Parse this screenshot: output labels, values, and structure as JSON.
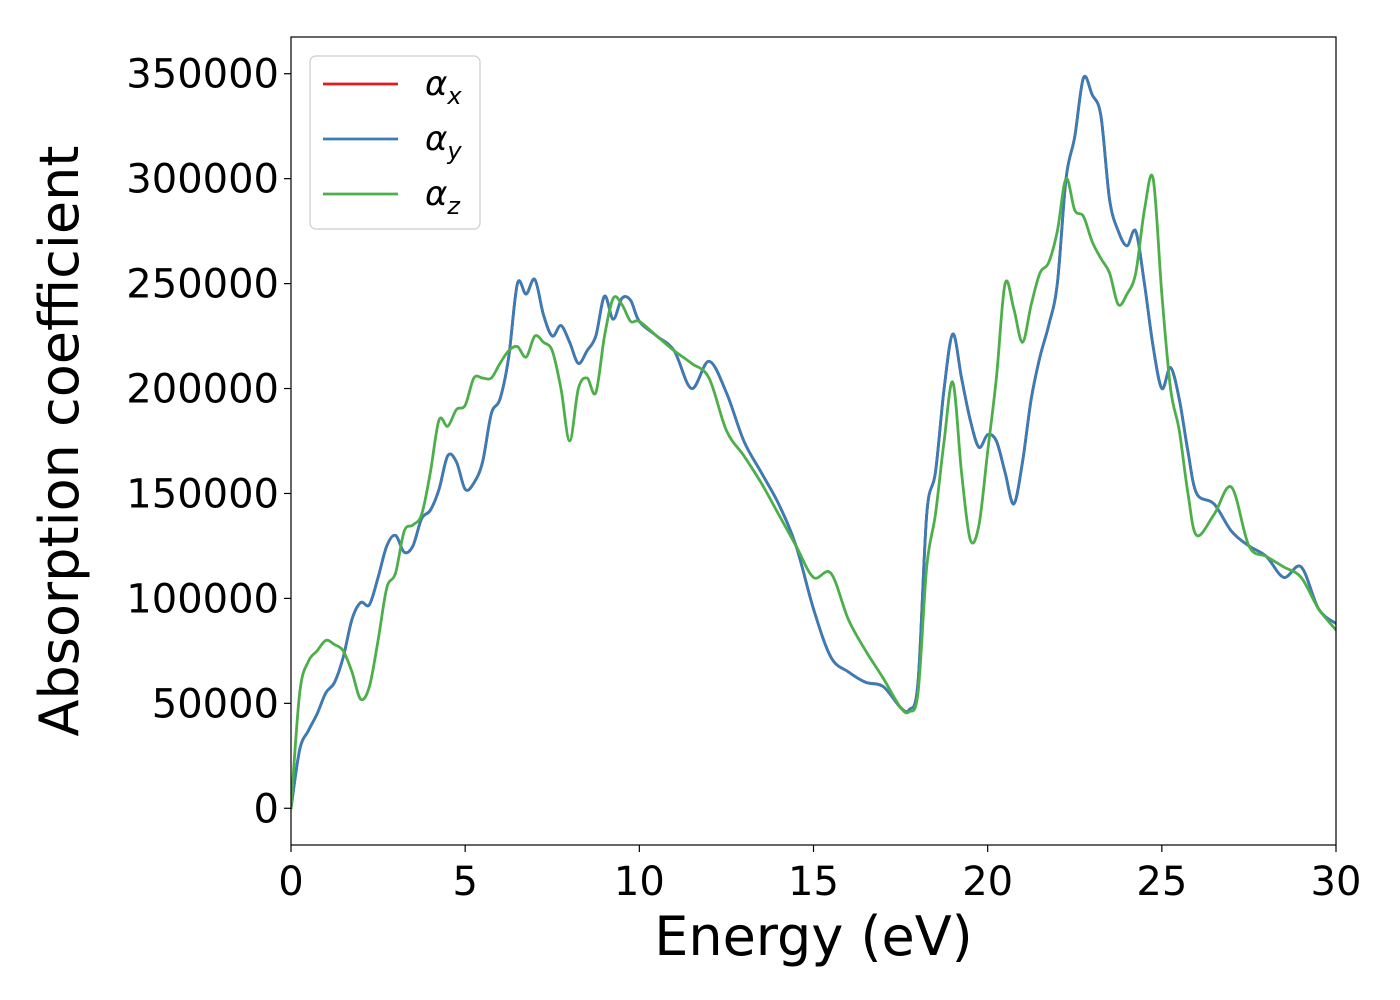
{
  "chart_data": {
    "type": "line",
    "xlabel": "Energy (eV)",
    "ylabel": "Absorption coefficient",
    "xlim": [
      0,
      30
    ],
    "ylim": [
      -17500,
      367500
    ],
    "xticks": [
      0,
      5,
      10,
      15,
      20,
      25,
      30
    ],
    "yticks": [
      0,
      50000,
      100000,
      150000,
      200000,
      250000,
      300000,
      350000
    ],
    "xtick_labels": [
      "0",
      "5",
      "10",
      "15",
      "20",
      "25",
      "30"
    ],
    "ytick_labels": [
      "0",
      "50000",
      "100000",
      "150000",
      "200000",
      "250000",
      "300000",
      "350000"
    ],
    "grid": false,
    "legend_position": "top-left",
    "series": [
      {
        "name": "αx",
        "symbol": "α",
        "subscript": "x",
        "color": "#e41a1c",
        "x": [
          0,
          0.25,
          0.5,
          0.75,
          1.0,
          1.25,
          1.5,
          1.75,
          2.0,
          2.25,
          2.5,
          2.75,
          3.0,
          3.25,
          3.5,
          3.75,
          4.0,
          4.25,
          4.5,
          4.75,
          5.0,
          5.25,
          5.5,
          5.75,
          6.0,
          6.25,
          6.5,
          6.75,
          7.0,
          7.25,
          7.5,
          7.75,
          8.0,
          8.25,
          8.5,
          8.75,
          9.0,
          9.25,
          9.5,
          9.75,
          10.0,
          10.5,
          11.0,
          11.5,
          12.0,
          12.5,
          13.0,
          13.5,
          14.0,
          14.5,
          15.0,
          15.5,
          16.0,
          16.5,
          17.0,
          17.5,
          17.75,
          18.0,
          18.25,
          18.5,
          18.75,
          19.0,
          19.25,
          19.5,
          19.75,
          20.0,
          20.25,
          20.5,
          20.75,
          21.0,
          21.25,
          21.5,
          21.75,
          22.0,
          22.25,
          22.5,
          22.75,
          23.0,
          23.25,
          23.5,
          23.75,
          24.0,
          24.25,
          24.5,
          24.75,
          25.0,
          25.25,
          25.5,
          25.75,
          26.0,
          26.5,
          27.0,
          27.5,
          28.0,
          28.5,
          29.0,
          29.5,
          30.0
        ],
        "y": [
          0,
          28000,
          37000,
          45000,
          55000,
          60000,
          72000,
          90000,
          98000,
          97000,
          110000,
          125000,
          130000,
          122000,
          125000,
          138000,
          142000,
          152000,
          168000,
          165000,
          152000,
          155000,
          165000,
          188000,
          195000,
          215000,
          250000,
          245000,
          252000,
          235000,
          225000,
          230000,
          222000,
          212000,
          218000,
          225000,
          244000,
          233000,
          243000,
          242000,
          232000,
          225000,
          218000,
          200000,
          213000,
          198000,
          175000,
          160000,
          145000,
          125000,
          95000,
          72000,
          65000,
          60000,
          58000,
          48000,
          47000,
          60000,
          140000,
          160000,
          200000,
          226000,
          205000,
          185000,
          172000,
          178000,
          175000,
          160000,
          145000,
          165000,
          195000,
          215000,
          230000,
          250000,
          300000,
          320000,
          348000,
          340000,
          330000,
          290000,
          275000,
          268000,
          275000,
          250000,
          220000,
          200000,
          210000,
          195000,
          170000,
          150000,
          145000,
          132000,
          125000,
          120000,
          110000,
          115000,
          95000,
          88000
        ]
      },
      {
        "name": "αy",
        "symbol": "α",
        "subscript": "y",
        "color": "#377eb8",
        "x": [
          0,
          0.25,
          0.5,
          0.75,
          1.0,
          1.25,
          1.5,
          1.75,
          2.0,
          2.25,
          2.5,
          2.75,
          3.0,
          3.25,
          3.5,
          3.75,
          4.0,
          4.25,
          4.5,
          4.75,
          5.0,
          5.25,
          5.5,
          5.75,
          6.0,
          6.25,
          6.5,
          6.75,
          7.0,
          7.25,
          7.5,
          7.75,
          8.0,
          8.25,
          8.5,
          8.75,
          9.0,
          9.25,
          9.5,
          9.75,
          10.0,
          10.5,
          11.0,
          11.5,
          12.0,
          12.5,
          13.0,
          13.5,
          14.0,
          14.5,
          15.0,
          15.5,
          16.0,
          16.5,
          17.0,
          17.5,
          17.75,
          18.0,
          18.25,
          18.5,
          18.75,
          19.0,
          19.25,
          19.5,
          19.75,
          20.0,
          20.25,
          20.5,
          20.75,
          21.0,
          21.25,
          21.5,
          21.75,
          22.0,
          22.25,
          22.5,
          22.75,
          23.0,
          23.25,
          23.5,
          23.75,
          24.0,
          24.25,
          24.5,
          24.75,
          25.0,
          25.25,
          25.5,
          25.75,
          26.0,
          26.5,
          27.0,
          27.5,
          28.0,
          28.5,
          29.0,
          29.5,
          30.0
        ],
        "y": [
          0,
          28000,
          37000,
          45000,
          55000,
          60000,
          72000,
          90000,
          98000,
          97000,
          110000,
          125000,
          130000,
          122000,
          125000,
          138000,
          142000,
          152000,
          168000,
          165000,
          152000,
          155000,
          165000,
          188000,
          195000,
          215000,
          250000,
          245000,
          252000,
          235000,
          225000,
          230000,
          222000,
          212000,
          218000,
          225000,
          244000,
          233000,
          243000,
          242000,
          232000,
          225000,
          218000,
          200000,
          213000,
          198000,
          175000,
          160000,
          145000,
          125000,
          95000,
          72000,
          65000,
          60000,
          58000,
          48000,
          47000,
          60000,
          140000,
          160000,
          200000,
          226000,
          205000,
          185000,
          172000,
          178000,
          175000,
          160000,
          145000,
          165000,
          195000,
          215000,
          230000,
          250000,
          300000,
          320000,
          348000,
          340000,
          330000,
          290000,
          275000,
          268000,
          275000,
          250000,
          220000,
          200000,
          210000,
          195000,
          170000,
          150000,
          145000,
          132000,
          125000,
          120000,
          110000,
          115000,
          95000,
          88000
        ]
      },
      {
        "name": "αz",
        "symbol": "α",
        "subscript": "z",
        "color": "#4daf4a",
        "x": [
          0,
          0.25,
          0.5,
          0.75,
          1.0,
          1.25,
          1.5,
          1.75,
          2.0,
          2.25,
          2.5,
          2.75,
          3.0,
          3.25,
          3.5,
          3.75,
          4.0,
          4.25,
          4.5,
          4.75,
          5.0,
          5.25,
          5.5,
          5.75,
          6.0,
          6.25,
          6.5,
          6.75,
          7.0,
          7.25,
          7.5,
          7.75,
          8.0,
          8.25,
          8.5,
          8.75,
          9.0,
          9.25,
          9.5,
          9.75,
          10.0,
          10.5,
          11.0,
          11.5,
          12.0,
          12.5,
          13.0,
          13.5,
          14.0,
          14.5,
          15.0,
          15.5,
          16.0,
          16.5,
          17.0,
          17.5,
          17.75,
          18.0,
          18.25,
          18.5,
          18.75,
          19.0,
          19.25,
          19.5,
          19.75,
          20.0,
          20.25,
          20.5,
          20.75,
          21.0,
          21.25,
          21.5,
          21.75,
          22.0,
          22.25,
          22.5,
          22.75,
          23.0,
          23.25,
          23.5,
          23.75,
          24.0,
          24.25,
          24.5,
          24.75,
          25.0,
          25.25,
          25.5,
          25.75,
          26.0,
          26.5,
          27.0,
          27.5,
          28.0,
          28.5,
          29.0,
          29.5,
          30.0
        ],
        "y": [
          0,
          55000,
          70000,
          75000,
          80000,
          78000,
          75000,
          65000,
          52000,
          58000,
          80000,
          105000,
          112000,
          132000,
          135000,
          140000,
          160000,
          185000,
          182000,
          190000,
          192000,
          205000,
          205000,
          205000,
          212000,
          218000,
          220000,
          215000,
          225000,
          222000,
          218000,
          200000,
          175000,
          200000,
          205000,
          198000,
          225000,
          243000,
          240000,
          232000,
          232000,
          225000,
          218000,
          212000,
          205000,
          180000,
          168000,
          155000,
          140000,
          125000,
          110000,
          112000,
          90000,
          75000,
          62000,
          48000,
          46000,
          55000,
          115000,
          140000,
          175000,
          203000,
          160000,
          128000,
          135000,
          170000,
          205000,
          250000,
          238000,
          222000,
          240000,
          255000,
          260000,
          275000,
          300000,
          285000,
          282000,
          270000,
          262000,
          255000,
          240000,
          245000,
          255000,
          285000,
          300000,
          245000,
          200000,
          180000,
          150000,
          130000,
          140000,
          153000,
          125000,
          120000,
          115000,
          110000,
          95000,
          85000
        ]
      }
    ]
  }
}
